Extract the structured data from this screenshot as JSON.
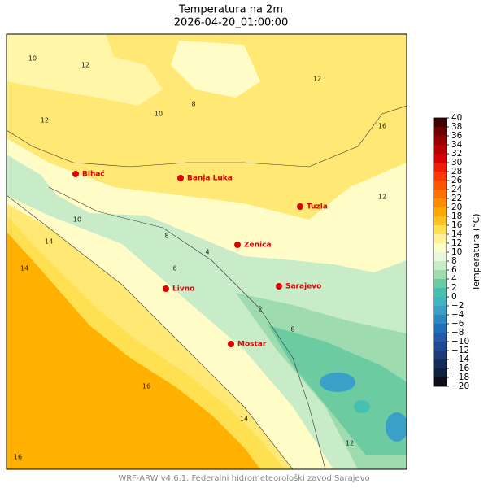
{
  "title": "Temperatura na 2m",
  "subtitle": "2026-04-20_01:00:00",
  "footer": "WRF-ARW v4.6.1, Federalni hidrometeorološki zavod Sarajevo",
  "cities": [
    {
      "name": "Bihać"
    },
    {
      "name": "Banja Luka"
    },
    {
      "name": "Tuzla"
    },
    {
      "name": "Zenica"
    },
    {
      "name": "Sarajevo"
    },
    {
      "name": "Livno"
    },
    {
      "name": "Mostar"
    }
  ],
  "contour_labels": [
    10,
    12,
    12,
    10,
    8,
    12,
    16,
    12,
    10,
    8,
    6,
    4,
    14,
    14,
    16,
    16,
    2,
    8,
    12,
    14
  ],
  "colorbar": {
    "label": "Temperatura (°C)",
    "lim": [
      -20,
      40
    ],
    "levels": [
      -20,
      -18,
      -16,
      -14,
      -12,
      -10,
      -8,
      -6,
      -4,
      -2,
      0,
      2,
      4,
      6,
      8,
      10,
      12,
      14,
      16,
      18,
      20,
      22,
      24,
      26,
      28,
      30,
      32,
      34,
      36,
      38,
      40
    ],
    "colors": [
      "#0d0d1a",
      "#101f3a",
      "#152c5a",
      "#1a3a78",
      "#1f4a92",
      "#2458a8",
      "#1f6fb8",
      "#2b88c0",
      "#3aa0c8",
      "#3fb5c0",
      "#48c0b0",
      "#6ccba0",
      "#9edcb0",
      "#c8ecc8",
      "#e8f7e0",
      "#fdfdc8",
      "#fff09a",
      "#ffe050",
      "#ffc020",
      "#ffa800",
      "#ff8c00",
      "#ff7000",
      "#ff5500",
      "#ff3a00",
      "#f01e00",
      "#d80000",
      "#b80000",
      "#980000",
      "#700000",
      "#400000"
    ],
    "ticks": [
      {
        "value": -20,
        "label": "−20"
      },
      {
        "value": -18,
        "label": "−18"
      },
      {
        "value": -16,
        "label": "−16"
      },
      {
        "value": -14,
        "label": "−14"
      },
      {
        "value": -12,
        "label": "−12"
      },
      {
        "value": -10,
        "label": "−10"
      },
      {
        "value": -8,
        "label": "−8"
      },
      {
        "value": -6,
        "label": "−6"
      },
      {
        "value": -4,
        "label": "−4"
      },
      {
        "value": -2,
        "label": "−2"
      },
      0,
      2,
      4,
      6,
      8,
      10,
      12,
      14,
      16,
      18,
      20,
      22,
      24,
      26,
      28,
      30,
      32,
      34,
      36,
      38,
      40
    ]
  }
}
